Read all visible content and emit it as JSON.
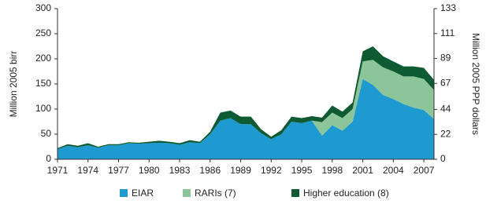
{
  "chart_data": {
    "type": "stacked_area",
    "y_label": "Million 2005 birr",
    "y2_label": "Million 2005 PPP dollars",
    "x": [
      1971,
      1972,
      1973,
      1974,
      1975,
      1976,
      1977,
      1978,
      1979,
      1980,
      1981,
      1982,
      1983,
      1984,
      1985,
      1986,
      1987,
      1988,
      1989,
      1990,
      1991,
      1992,
      1993,
      1994,
      1995,
      1996,
      1997,
      1998,
      1999,
      2000,
      2001,
      2002,
      2003,
      2004,
      2005,
      2006,
      2007,
      2008
    ],
    "series": [
      {
        "name": "EIAR",
        "color": "#1e9ad0",
        "values": [
          20,
          27,
          24,
          28,
          23,
          28,
          28,
          32,
          31,
          32,
          33,
          32,
          29,
          34,
          32,
          50,
          77,
          82,
          70,
          70,
          52,
          40,
          50,
          75,
          72,
          77,
          47,
          68,
          57,
          75,
          160,
          148,
          128,
          120,
          110,
          103,
          98,
          80
        ]
      },
      {
        "name": "RARIs (7)",
        "color": "#8dc59b",
        "values": [
          0,
          0,
          0,
          0,
          0,
          0,
          0,
          0,
          0,
          0,
          0,
          0,
          0,
          0,
          0,
          0,
          0,
          0,
          0,
          0,
          0,
          0,
          0,
          0,
          0,
          0,
          27,
          25,
          25,
          25,
          35,
          50,
          55,
          55,
          55,
          62,
          62,
          58
        ]
      },
      {
        "name": "Higher education (8)",
        "color": "#0d5a33",
        "values": [
          2,
          3,
          3,
          4,
          2,
          2,
          2,
          2,
          2,
          3,
          4,
          3,
          3,
          4,
          3,
          5,
          16,
          15,
          15,
          15,
          8,
          5,
          8,
          10,
          10,
          9,
          9,
          14,
          13,
          13,
          20,
          27,
          22,
          20,
          20,
          20,
          22,
          20
        ]
      }
    ],
    "xlim": [
      1971,
      2008
    ],
    "xticks": [
      1971,
      1974,
      1977,
      1980,
      1983,
      1986,
      1989,
      1992,
      1995,
      1998,
      2001,
      2004,
      2007
    ],
    "ylim": [
      0,
      300
    ],
    "yticks": [
      0,
      50,
      100,
      150,
      200,
      250,
      300
    ],
    "y2lim": [
      0,
      133
    ],
    "y2ticks": [
      0,
      22,
      44,
      67,
      89,
      111,
      133
    ]
  }
}
